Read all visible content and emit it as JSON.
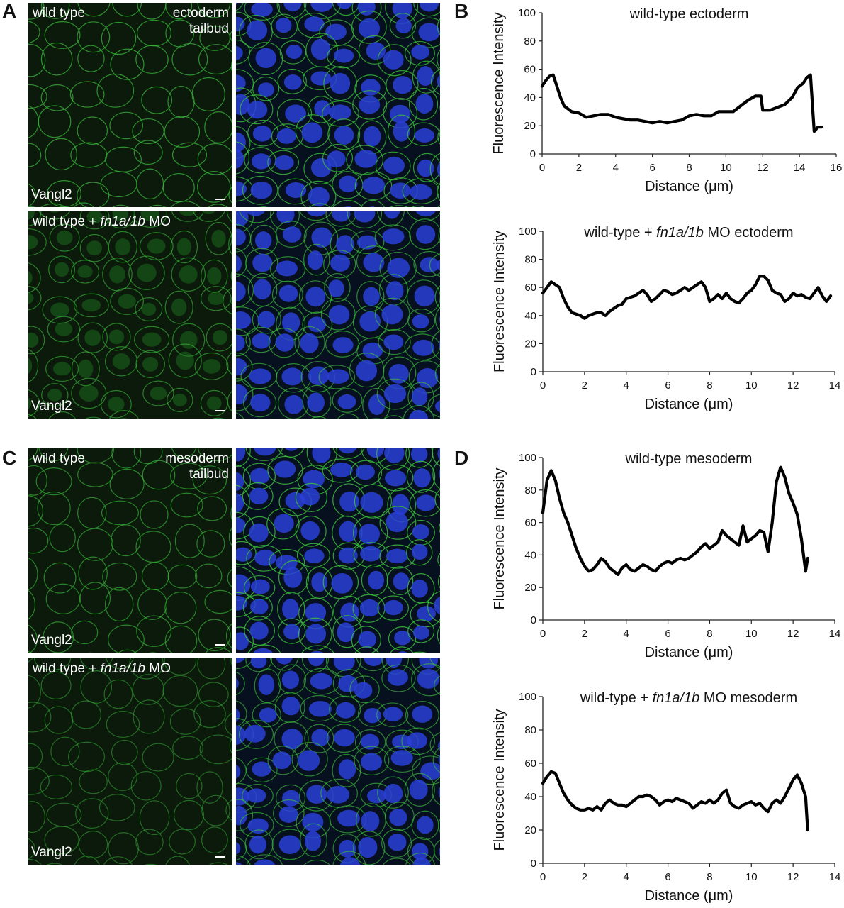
{
  "panel_letters": {
    "a": "A",
    "b": "B",
    "c": "C",
    "d": "D"
  },
  "micrographs": {
    "a_top": {
      "left_label": "wild type",
      "right_label_line1": "ectoderm",
      "right_label_line2": "tailbud",
      "marker": "Vangl2"
    },
    "a_bottom": {
      "left_label_pre": "wild type + ",
      "left_label_gene": "fn1a/1b",
      "left_label_post": " MO",
      "marker": "Vangl2"
    },
    "c_top": {
      "left_label": "wild type",
      "right_label_line1": "mesoderm",
      "right_label_line2": "tailbud",
      "marker": "Vangl2"
    },
    "c_bottom": {
      "left_label_pre": "wild type + ",
      "left_label_gene": "fn1a/1b",
      "left_label_post": " MO",
      "marker": "Vangl2"
    },
    "colors": {
      "green_channel": "#1f7a1f",
      "nuclei": "#2a3fd8",
      "membrane": "#3bbd3b",
      "background": "#0b1a0b"
    }
  },
  "chart_data": [
    {
      "type": "line",
      "title": "wild-type ectoderm",
      "xlabel": "Distance (μm)",
      "ylabel": "Fluorescence Intensity",
      "xlim": [
        0,
        16
      ],
      "ylim": [
        0,
        100
      ],
      "xticks": [
        0,
        2,
        4,
        6,
        8,
        10,
        12,
        14,
        16
      ],
      "yticks": [
        0,
        20,
        40,
        60,
        80,
        100
      ],
      "x": [
        0,
        0.2,
        0.4,
        0.6,
        0.8,
        1.0,
        1.2,
        1.4,
        1.6,
        2.0,
        2.4,
        2.8,
        3.2,
        3.6,
        4.0,
        4.4,
        4.8,
        5.2,
        5.6,
        6.0,
        6.4,
        6.8,
        7.2,
        7.6,
        8.0,
        8.4,
        8.8,
        9.2,
        9.6,
        10.0,
        10.4,
        10.8,
        11.2,
        11.6,
        11.9,
        12.0,
        12.4,
        12.8,
        13.2,
        13.6,
        13.9,
        14.2,
        14.4,
        14.6,
        14.8,
        15.0,
        15.2
      ],
      "y": [
        48,
        52,
        55,
        56,
        48,
        40,
        34,
        32,
        30,
        29,
        26,
        27,
        28,
        28,
        26,
        25,
        24,
        24,
        23,
        22,
        23,
        22,
        23,
        24,
        27,
        28,
        27,
        27,
        30,
        30,
        30,
        34,
        38,
        41,
        41,
        31,
        31,
        33,
        35,
        40,
        47,
        50,
        54,
        56,
        16,
        19,
        19
      ],
      "grid": false
    },
    {
      "type": "line",
      "title_pre": "wild-type + ",
      "title_gene": "fn1a/1b",
      "title_post": " MO ectoderm",
      "xlabel": "Distance (μm)",
      "ylabel": "Fluorescence Intensity",
      "xlim": [
        0,
        14
      ],
      "ylim": [
        0,
        100
      ],
      "xticks": [
        0,
        2,
        4,
        6,
        8,
        10,
        12,
        14
      ],
      "yticks": [
        0,
        20,
        40,
        60,
        80,
        100
      ],
      "x": [
        0,
        0.2,
        0.4,
        0.6,
        0.8,
        1.0,
        1.2,
        1.4,
        1.6,
        1.8,
        2.0,
        2.2,
        2.4,
        2.6,
        2.8,
        3.0,
        3.2,
        3.4,
        3.6,
        3.8,
        4.0,
        4.2,
        4.4,
        4.6,
        4.8,
        5.0,
        5.2,
        5.4,
        5.6,
        5.8,
        6.0,
        6.2,
        6.4,
        6.6,
        6.8,
        7.0,
        7.2,
        7.4,
        7.6,
        7.8,
        8.0,
        8.2,
        8.4,
        8.6,
        8.8,
        9.0,
        9.2,
        9.4,
        9.6,
        9.8,
        10.0,
        10.2,
        10.4,
        10.6,
        10.8,
        11.0,
        11.2,
        11.4,
        11.6,
        11.8,
        12.0,
        12.2,
        12.4,
        12.6,
        12.8,
        13.0,
        13.2,
        13.4,
        13.6,
        13.8
      ],
      "y": [
        56,
        60,
        64,
        62,
        60,
        52,
        46,
        42,
        41,
        40,
        38,
        40,
        41,
        42,
        42,
        40,
        43,
        45,
        47,
        48,
        52,
        53,
        54,
        56,
        58,
        55,
        50,
        52,
        55,
        58,
        57,
        55,
        56,
        58,
        60,
        58,
        60,
        62,
        64,
        60,
        50,
        52,
        55,
        52,
        56,
        52,
        50,
        49,
        52,
        56,
        58,
        62,
        68,
        68,
        65,
        58,
        56,
        55,
        50,
        52,
        56,
        54,
        55,
        53,
        52,
        56,
        60,
        54,
        50,
        54
      ],
      "grid": false
    },
    {
      "type": "line",
      "title": "wild-type mesoderm",
      "xlabel": "Distance (μm)",
      "ylabel": "Fluorescence Intensity",
      "xlim": [
        0,
        14
      ],
      "ylim": [
        0,
        100
      ],
      "xticks": [
        0,
        2,
        4,
        6,
        8,
        10,
        12,
        14
      ],
      "yticks": [
        0,
        20,
        40,
        60,
        80,
        100
      ],
      "x": [
        0,
        0.2,
        0.4,
        0.6,
        0.8,
        1.0,
        1.2,
        1.4,
        1.6,
        1.8,
        2.0,
        2.2,
        2.4,
        2.6,
        2.8,
        3.0,
        3.2,
        3.4,
        3.6,
        3.8,
        4.0,
        4.2,
        4.4,
        4.6,
        4.8,
        5.0,
        5.2,
        5.4,
        5.6,
        5.8,
        6.0,
        6.2,
        6.4,
        6.6,
        6.8,
        7.0,
        7.2,
        7.4,
        7.6,
        7.8,
        8.0,
        8.2,
        8.4,
        8.6,
        8.8,
        9.0,
        9.2,
        9.4,
        9.6,
        9.8,
        10.0,
        10.2,
        10.4,
        10.6,
        10.8,
        11.0,
        11.2,
        11.4,
        11.6,
        11.8,
        12.0,
        12.2,
        12.4,
        12.6,
        12.7
      ],
      "y": [
        66,
        86,
        92,
        86,
        75,
        66,
        60,
        52,
        44,
        38,
        33,
        30,
        31,
        34,
        38,
        36,
        32,
        30,
        28,
        32,
        34,
        31,
        30,
        32,
        34,
        33,
        31,
        30,
        33,
        35,
        36,
        35,
        37,
        38,
        37,
        38,
        40,
        42,
        45,
        47,
        44,
        46,
        48,
        55,
        52,
        50,
        48,
        46,
        58,
        48,
        50,
        52,
        55,
        54,
        42,
        60,
        85,
        94,
        88,
        78,
        72,
        65,
        50,
        30,
        38
      ],
      "grid": false
    },
    {
      "type": "line",
      "title_pre": "wild-type + ",
      "title_gene": "fn1a/1b",
      "title_post": " MO mesoderm",
      "xlabel": "Distance (μm)",
      "ylabel": "Fluorescence Intensity",
      "xlim": [
        0,
        14
      ],
      "ylim": [
        0,
        100
      ],
      "xticks": [
        0,
        2,
        4,
        6,
        8,
        10,
        12,
        14
      ],
      "yticks": [
        0,
        20,
        40,
        60,
        80,
        100
      ],
      "x": [
        0,
        0.2,
        0.4,
        0.6,
        0.8,
        1.0,
        1.2,
        1.4,
        1.6,
        1.8,
        2.0,
        2.2,
        2.4,
        2.6,
        2.8,
        3.0,
        3.2,
        3.4,
        3.6,
        3.8,
        4.0,
        4.2,
        4.4,
        4.6,
        4.8,
        5.0,
        5.2,
        5.4,
        5.6,
        5.8,
        6.0,
        6.2,
        6.4,
        6.6,
        6.8,
        7.0,
        7.2,
        7.4,
        7.6,
        7.8,
        8.0,
        8.2,
        8.4,
        8.6,
        8.8,
        9.0,
        9.2,
        9.4,
        9.6,
        9.8,
        10.0,
        10.2,
        10.4,
        10.6,
        10.8,
        11.0,
        11.2,
        11.4,
        11.6,
        11.8,
        12.0,
        12.2,
        12.4,
        12.6,
        12.7
      ],
      "y": [
        48,
        52,
        55,
        54,
        48,
        42,
        38,
        35,
        33,
        32,
        32,
        33,
        32,
        34,
        32,
        36,
        38,
        36,
        35,
        35,
        34,
        36,
        38,
        40,
        40,
        41,
        40,
        38,
        35,
        37,
        38,
        37,
        39,
        38,
        37,
        36,
        33,
        35,
        37,
        36,
        38,
        36,
        38,
        42,
        44,
        36,
        34,
        33,
        35,
        36,
        37,
        35,
        36,
        33,
        31,
        36,
        38,
        36,
        40,
        45,
        50,
        53,
        48,
        40,
        20
      ],
      "grid": false
    }
  ]
}
